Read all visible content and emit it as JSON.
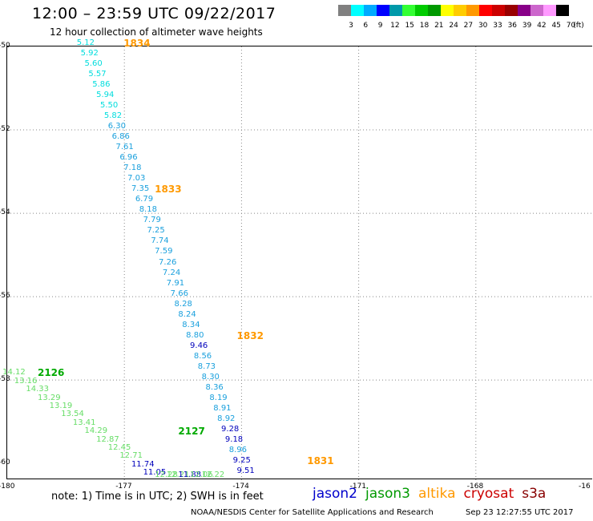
{
  "header": {
    "title": "12:00 – 23:59 UTC 09/22/2017",
    "subtitle": "12 hour collection of altimeter wave heights"
  },
  "colorbar": {
    "unit": "(ft)",
    "colors": [
      "#808080",
      "#00ffff",
      "#00aaff",
      "#0000ff",
      "#0099aa",
      "#33ff33",
      "#00cc00",
      "#009900",
      "#ffff00",
      "#ffcc00",
      "#ff9900",
      "#ff0000",
      "#cc0000",
      "#990000",
      "#880088",
      "#cc66cc",
      "#ff99ff",
      "#000000"
    ],
    "labels": [
      "3",
      "6",
      "9",
      "12",
      "15",
      "18",
      "21",
      "24",
      "27",
      "30",
      "33",
      "36",
      "39",
      "42",
      "45",
      "70"
    ]
  },
  "axes": {
    "x_ticks": [
      "-180",
      "-177",
      "-174",
      "-171",
      "-168",
      "-16"
    ],
    "y_ticks": [
      "-50",
      "-52",
      "-54",
      "-56",
      "-58",
      "-60"
    ]
  },
  "passes": [
    {
      "label": "1834",
      "color": "#ff9900",
      "lat": -49.95,
      "lon": -177.0
    },
    {
      "label": "1833",
      "color": "#ff9900",
      "lat": -53.45,
      "lon": -176.2
    },
    {
      "label": "1832",
      "color": "#ff9900",
      "lat": -56.95,
      "lon": -174.1
    },
    {
      "label": "1831",
      "color": "#ff9900",
      "lat": -59.95,
      "lon": -172.3
    },
    {
      "label": "2126",
      "color": "#00aa00",
      "lat": -57.85,
      "lon": -179.2
    },
    {
      "label": "2127",
      "color": "#00aa00",
      "lat": -59.25,
      "lon": -175.6
    }
  ],
  "tracks": [
    {
      "name": "altika-track",
      "points": [
        {
          "v": "5.12",
          "lat": -49.95,
          "lon": -178.2
        },
        {
          "v": "5.92",
          "lat": -50.2,
          "lon": -178.1
        },
        {
          "v": "5.60",
          "lat": -50.45,
          "lon": -178.0
        },
        {
          "v": "5.57",
          "lat": -50.7,
          "lon": -177.9
        },
        {
          "v": "5.86",
          "lat": -50.95,
          "lon": -177.8
        },
        {
          "v": "5.94",
          "lat": -51.2,
          "lon": -177.7
        },
        {
          "v": "5.50",
          "lat": -51.45,
          "lon": -177.6
        },
        {
          "v": "5.82",
          "lat": -51.7,
          "lon": -177.5
        },
        {
          "v": "6.30",
          "lat": -51.95,
          "lon": -177.4
        },
        {
          "v": "6.86",
          "lat": -52.2,
          "lon": -177.3
        },
        {
          "v": "7.61",
          "lat": -52.45,
          "lon": -177.2
        },
        {
          "v": "6.96",
          "lat": -52.7,
          "lon": -177.1
        },
        {
          "v": "7.18",
          "lat": -52.95,
          "lon": -177.0
        },
        {
          "v": "7.03",
          "lat": -53.2,
          "lon": -176.9
        },
        {
          "v": "7.35",
          "lat": -53.45,
          "lon": -176.8
        },
        {
          "v": "6.79",
          "lat": -53.7,
          "lon": -176.7
        },
        {
          "v": "8.18",
          "lat": -53.95,
          "lon": -176.6
        },
        {
          "v": "7.79",
          "lat": -54.2,
          "lon": -176.5
        },
        {
          "v": "7.25",
          "lat": -54.45,
          "lon": -176.4
        },
        {
          "v": "7.74",
          "lat": -54.7,
          "lon": -176.3
        },
        {
          "v": "7.59",
          "lat": -54.95,
          "lon": -176.2
        },
        {
          "v": "7.26",
          "lat": -55.2,
          "lon": -176.1
        },
        {
          "v": "7.24",
          "lat": -55.45,
          "lon": -176.0
        },
        {
          "v": "7.91",
          "lat": -55.7,
          "lon": -175.9
        },
        {
          "v": "7.66",
          "lat": -55.95,
          "lon": -175.8
        },
        {
          "v": "8.28",
          "lat": -56.2,
          "lon": -175.7
        },
        {
          "v": "8.24",
          "lat": -56.45,
          "lon": -175.6
        },
        {
          "v": "8.34",
          "lat": -56.7,
          "lon": -175.5
        },
        {
          "v": "8.80",
          "lat": -56.95,
          "lon": -175.4
        },
        {
          "v": "9.46",
          "lat": -57.2,
          "lon": -175.3
        },
        {
          "v": "8.56",
          "lat": -57.45,
          "lon": -175.2
        },
        {
          "v": "8.73",
          "lat": -57.7,
          "lon": -175.1
        },
        {
          "v": "8.30",
          "lat": -57.95,
          "lon": -175.0
        },
        {
          "v": "8.36",
          "lat": -58.2,
          "lon": -174.9
        },
        {
          "v": "8.19",
          "lat": -58.45,
          "lon": -174.8
        },
        {
          "v": "8.91",
          "lat": -58.7,
          "lon": -174.7
        },
        {
          "v": "8.92",
          "lat": -58.95,
          "lon": -174.6
        },
        {
          "v": "9.28",
          "lat": -59.2,
          "lon": -174.5
        },
        {
          "v": "9.18",
          "lat": -59.45,
          "lon": -174.4
        },
        {
          "v": "8.96",
          "lat": -59.7,
          "lon": -174.3
        },
        {
          "v": "9.25",
          "lat": -59.95,
          "lon": -174.2
        },
        {
          "v": "9.51",
          "lat": -60.2,
          "lon": -174.1
        }
      ]
    },
    {
      "name": "jason3-track",
      "points": [
        {
          "v": "14.12",
          "lat": -57.85,
          "lon": -180.1
        },
        {
          "v": "13.16",
          "lat": -58.05,
          "lon": -179.8
        },
        {
          "v": "14.33",
          "lat": -58.25,
          "lon": -179.5
        },
        {
          "v": "13.29",
          "lat": -58.45,
          "lon": -179.2
        },
        {
          "v": "13.19",
          "lat": -58.65,
          "lon": -178.9
        },
        {
          "v": "13.54",
          "lat": -58.85,
          "lon": -178.6
        },
        {
          "v": "13.41",
          "lat": -59.05,
          "lon": -178.3
        },
        {
          "v": "14.29",
          "lat": -59.25,
          "lon": -178.0
        },
        {
          "v": "12.87",
          "lat": -59.45,
          "lon": -177.7
        },
        {
          "v": "12.45",
          "lat": -59.65,
          "lon": -177.4
        },
        {
          "v": "12.71",
          "lat": -59.85,
          "lon": -177.1
        },
        {
          "v": "11.74",
          "lat": -60.05,
          "lon": -176.8
        },
        {
          "v": "11.05",
          "lat": -60.25,
          "lon": -176.5
        },
        {
          "v": "12.28",
          "lat": -60.45,
          "lon": -176.2
        },
        {
          "v": "12.21",
          "lat": -60.65,
          "lon": -175.9
        },
        {
          "v": "11.88",
          "lat": -60.85,
          "lon": -175.6
        },
        {
          "v": "12.06",
          "lat": -61.05,
          "lon": -175.3
        },
        {
          "v": "12.22",
          "lat": -61.25,
          "lon": -175.0
        }
      ]
    }
  ],
  "legend": {
    "items": [
      {
        "label": "jason2",
        "color": "#0000cc"
      },
      {
        "label": "jason3",
        "color": "#009900"
      },
      {
        "label": "altika",
        "color": "#ff9900"
      },
      {
        "label": "cryosat",
        "color": "#cc0000"
      },
      {
        "label": "s3a",
        "color": "#880000"
      }
    ]
  },
  "note": "note: 1) Time is in UTC; 2) SWH is in feet",
  "footer": {
    "agency": "NOAA/NESDIS Center for Satellite Applications and Research",
    "generated": "Sep 23 12:27:55 UTC 2017"
  }
}
